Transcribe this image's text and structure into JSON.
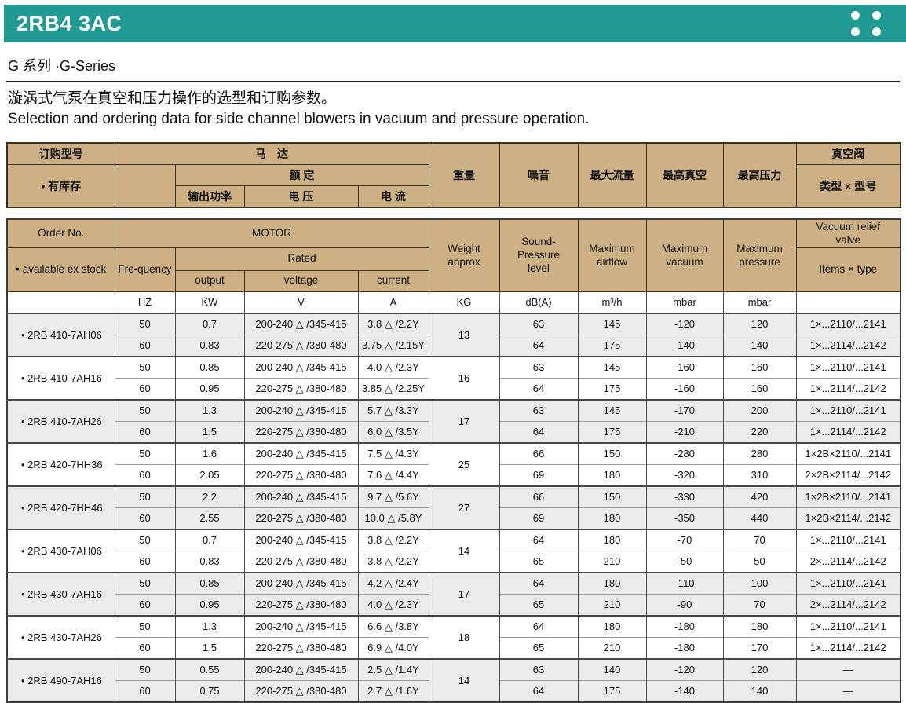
{
  "colors": {
    "accent_teal": "#219a94",
    "header_tan": "#cdb185",
    "row_alt_gray": "#ebebeb"
  },
  "header": {
    "title": "2RB4 3AC"
  },
  "series_heading": "G 系列 ·G-Series",
  "description": {
    "zh": "漩涡式气泵在真空和压力操作的选型和订购参数。",
    "en": "Selection and ordering data for side channel blowers in vacuum and pressure operation."
  },
  "table_cn": {
    "order_no": "订购型号",
    "stock": "• 有库存",
    "motor": "马　达",
    "rated": "额 定",
    "output": "输出功率",
    "voltage": "电 压",
    "current": "电 流",
    "weight": "重量",
    "noise": "噪音",
    "max_airflow": "最大流量",
    "max_vacuum": "最高真空",
    "max_pressure": "最高压力",
    "vacuum_valve": "真空阀",
    "type_model": "类型 × 型号"
  },
  "table_en": {
    "order_no": "Order No.",
    "stock": "• available ex stock",
    "motor": "MOTOR",
    "frequency": "Fre-quency",
    "rated": "Rated",
    "output": "output",
    "voltage": "voltage",
    "current": "current",
    "weight": "Weight\napprox",
    "noise": "Sound-\nPressure\nlevel",
    "max_airflow": "Maximum\nairflow",
    "max_vacuum": "Maximum\nvacuum",
    "max_pressure": "Maximum\npressure",
    "vacuum_valve": "Vacuum relief\nvalve",
    "type_model": "Items × type"
  },
  "units": {
    "order": "",
    "hz": "HZ",
    "kw": "KW",
    "v": "V",
    "a": "A",
    "kg": "KG",
    "db": "dB(A)",
    "flow": "m³/h",
    "vac": "mbar",
    "press": "mbar",
    "valve": ""
  },
  "groups": [
    {
      "order": "• 2RB 410-7AH06",
      "weight": "13",
      "rows": [
        {
          "hz": "50",
          "kw": "0.7",
          "v": "200-240 △ /345-415",
          "a": "3.8 △ /2.2Y",
          "db": "63",
          "flow": "145",
          "vac": "-120",
          "press": "120",
          "valve": "1×...2110/...2141"
        },
        {
          "hz": "60",
          "kw": "0.83",
          "v": "220-275 △ /380-480",
          "a": "3.75 △ /2.15Y",
          "db": "64",
          "flow": "175",
          "vac": "-140",
          "press": "140",
          "valve": "1×...2114/...2142"
        }
      ]
    },
    {
      "order": "• 2RB 410-7AH16",
      "weight": "16",
      "rows": [
        {
          "hz": "50",
          "kw": "0.85",
          "v": "200-240 △ /345-415",
          "a": "4.0 △ /2.3Y",
          "db": "63",
          "flow": "145",
          "vac": "-160",
          "press": "160",
          "valve": "1×...2110/...2141"
        },
        {
          "hz": "60",
          "kw": "0.95",
          "v": "220-275 △ /380-480",
          "a": "3.85 △ /2.25Y",
          "db": "64",
          "flow": "175",
          "vac": "-160",
          "press": "160",
          "valve": "1×...2114/...2142"
        }
      ]
    },
    {
      "order": "• 2RB 410-7AH26",
      "weight": "17",
      "rows": [
        {
          "hz": "50",
          "kw": "1.3",
          "v": "200-240 △ /345-415",
          "a": "5.7 △ /3.3Y",
          "db": "63",
          "flow": "145",
          "vac": "-170",
          "press": "200",
          "valve": "1×...2110/...2141"
        },
        {
          "hz": "60",
          "kw": "1.5",
          "v": "220-275 △ /380-480",
          "a": "6.0 △ /3.5Y",
          "db": "64",
          "flow": "175",
          "vac": "-210",
          "press": "220",
          "valve": "1×...2114/...2142"
        }
      ]
    },
    {
      "order": "• 2RB 420-7HH36",
      "weight": "25",
      "rows": [
        {
          "hz": "50",
          "kw": "1.6",
          "v": "200-240 △ /345-415",
          "a": "7.5 △ /4.3Y",
          "db": "66",
          "flow": "150",
          "vac": "-280",
          "press": "280",
          "valve": "1×2B×2110/...2141"
        },
        {
          "hz": "60",
          "kw": "2.05",
          "v": "220-275 △ /380-480",
          "a": "7.6 △ /4.4Y",
          "db": "69",
          "flow": "180",
          "vac": "-320",
          "press": "310",
          "valve": "2×2B×2114/...2142"
        }
      ]
    },
    {
      "order": "• 2RB 420-7HH46",
      "weight": "27",
      "rows": [
        {
          "hz": "50",
          "kw": "2.2",
          "v": "200-240 △ /345-415",
          "a": "9.7 △ /5.6Y",
          "db": "66",
          "flow": "150",
          "vac": "-330",
          "press": "420",
          "valve": "1×2B×2110/...2141"
        },
        {
          "hz": "60",
          "kw": "2.55",
          "v": "220-275 △ /380-480",
          "a": "10.0 △ /5.8Y",
          "db": "69",
          "flow": "180",
          "vac": "-350",
          "press": "440",
          "valve": "1×2B×2114/...2142"
        }
      ]
    },
    {
      "order": "• 2RB 430-7AH06",
      "weight": "14",
      "rows": [
        {
          "hz": "50",
          "kw": "0.7",
          "v": "200-240 △ /345-415",
          "a": "3.8 △ /2.2Y",
          "db": "64",
          "flow": "180",
          "vac": "-70",
          "press": "70",
          "valve": "1×...2110/...2141"
        },
        {
          "hz": "60",
          "kw": "0.83",
          "v": "220-275 △ /380-480",
          "a": "3.8 △ /2.2Y",
          "db": "65",
          "flow": "210",
          "vac": "-50",
          "press": "50",
          "valve": "2×...2114/...2142"
        }
      ]
    },
    {
      "order": "• 2RB 430-7AH16",
      "weight": "17",
      "rows": [
        {
          "hz": "50",
          "kw": "0.85",
          "v": "200-240 △ /345-415",
          "a": "4.2 △ /2.4Y",
          "db": "64",
          "flow": "180",
          "vac": "-110",
          "press": "100",
          "valve": "1×...2110/...2141"
        },
        {
          "hz": "60",
          "kw": "0.95",
          "v": "220-275 △ /380-480",
          "a": "4.0 △ /2.3Y",
          "db": "65",
          "flow": "210",
          "vac": "-90",
          "press": "70",
          "valve": "2×...2114/...2142"
        }
      ]
    },
    {
      "order": "• 2RB 430-7AH26",
      "weight": "18",
      "rows": [
        {
          "hz": "50",
          "kw": "1.3",
          "v": "200-240 △ /345-415",
          "a": "6.6 △ /3.8Y",
          "db": "64",
          "flow": "180",
          "vac": "-180",
          "press": "180",
          "valve": "1×...2110/...2141"
        },
        {
          "hz": "60",
          "kw": "1.5",
          "v": "220-275 △ /380-480",
          "a": "6.9 △ /4.0Y",
          "db": "65",
          "flow": "210",
          "vac": "-180",
          "press": "170",
          "valve": "1×...2114/...2142"
        }
      ]
    },
    {
      "order": "• 2RB 490-7AH16",
      "weight": "14",
      "rows": [
        {
          "hz": "50",
          "kw": "0.55",
          "v": "200-240 △ /345-415",
          "a": "2.5 △ /1.4Y",
          "db": "63",
          "flow": "140",
          "vac": "-120",
          "press": "120",
          "valve": "—"
        },
        {
          "hz": "60",
          "kw": "0.75",
          "v": "220-275 △ /380-480",
          "a": "2.7 △ /1.6Y",
          "db": "64",
          "flow": "175",
          "vac": "-140",
          "press": "140",
          "valve": "—"
        }
      ]
    }
  ]
}
